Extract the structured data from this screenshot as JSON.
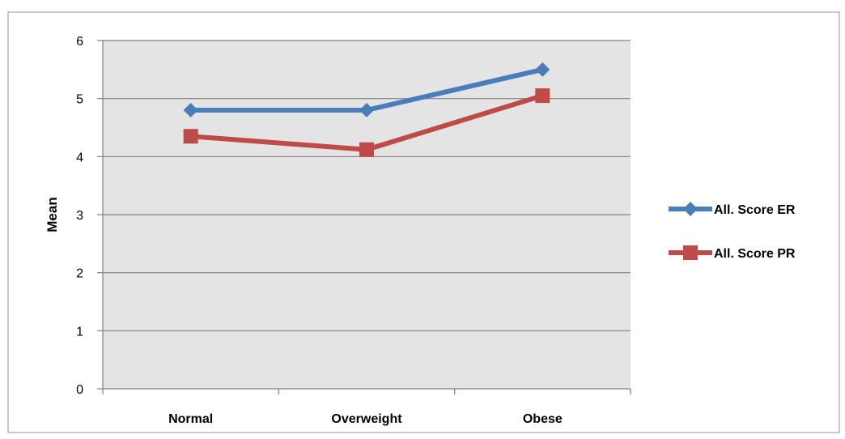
{
  "chart_data": {
    "type": "line",
    "title": "",
    "xlabel": "",
    "ylabel": "Mean",
    "categories": [
      "Normal",
      "Overweight",
      "Obese"
    ],
    "ylim": [
      0,
      6
    ],
    "yticks": [
      0,
      1,
      2,
      3,
      4,
      5,
      6
    ],
    "grid": true,
    "legend_position": "right",
    "plot_background": "#e4e4e4",
    "series": [
      {
        "name": "All. Score ER",
        "values": [
          4.8,
          4.8,
          5.5
        ],
        "color": "#4a7ebb",
        "marker": "diamond"
      },
      {
        "name": "All. Score PR",
        "values": [
          4.35,
          4.12,
          5.05
        ],
        "color": "#be4b48",
        "marker": "square"
      }
    ]
  }
}
